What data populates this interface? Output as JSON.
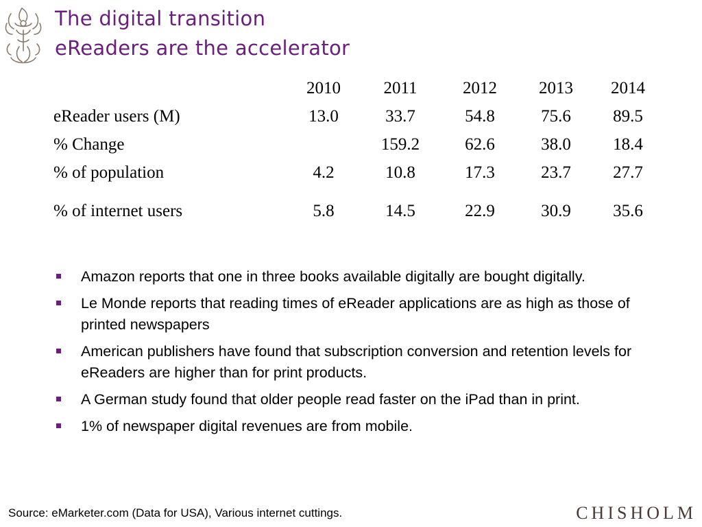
{
  "title": {
    "line1": "The digital transition",
    "line2": "eReaders are the accelerator"
  },
  "table": {
    "years": [
      "2010",
      "2011",
      "2012",
      "2013",
      "2014"
    ],
    "rows": [
      {
        "label": "eReader users (M)",
        "values": [
          "13.0",
          "33.7",
          "54.8",
          "75.6",
          "89.5"
        ]
      },
      {
        "label": "% Change",
        "values": [
          "",
          "159.2",
          "62.6",
          "38.0",
          "18.4"
        ]
      },
      {
        "label": "% of population",
        "values": [
          "4.2",
          "10.8",
          "17.3",
          "23.7",
          "27.7"
        ]
      },
      {
        "label": "% of internet users",
        "values": [
          "5.8",
          "14.5",
          "22.9",
          "30.9",
          "35.6"
        ]
      }
    ]
  },
  "bullets": [
    "Amazon reports that one in three books available digitally are bought digitally.",
    "Le Monde reports that reading times of eReader applications are as high as those of printed newspapers",
    "American publishers have found that subscription conversion and retention levels for eReaders are higher than for print products.",
    "A German study found that older people read faster on the iPad than in print.",
    "1% of newspaper digital revenues are from mobile."
  ],
  "source": "Source: eMarketer.com (Data for USA), Various internet cuttings.",
  "brand": "CHISHOLM",
  "colors": {
    "title": "#6b1f7c",
    "bullet": "#6b1f7c",
    "brand": "#4a3b36"
  },
  "icons": {
    "logo": "heraldic-crest-icon"
  }
}
